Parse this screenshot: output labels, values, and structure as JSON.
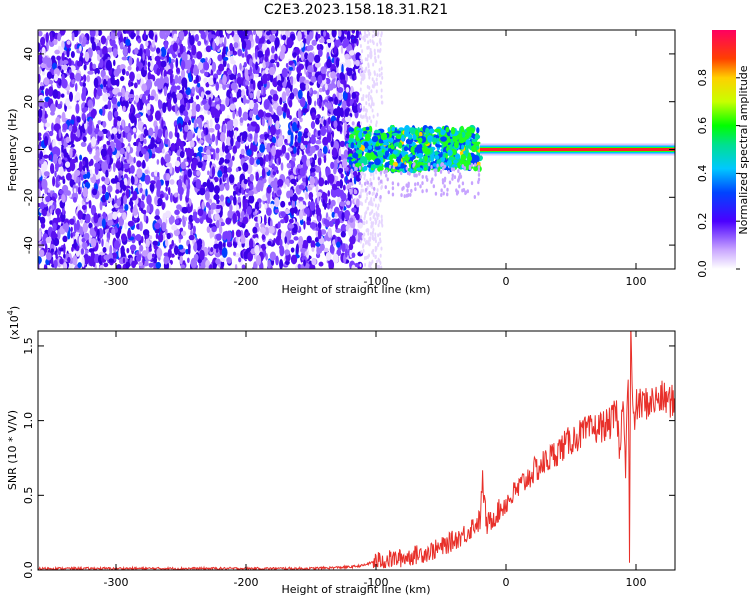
{
  "title": "C2E3.2023.158.18.31.R21",
  "colors": {
    "snr_line": "#e8302a",
    "axis": "#000000"
  },
  "chart_data": [
    {
      "type": "heatmap",
      "title": "C2E3.2023.158.18.31.R21",
      "xlabel": "Height of straight line (km)",
      "ylabel": "Frequency (Hz)",
      "xlim": [
        -360,
        130
      ],
      "ylim": [
        -50,
        50
      ],
      "x_ticks": [
        -300,
        -200,
        -100,
        0,
        100
      ],
      "x_tick_labels": [
        "-300",
        "-200",
        "-100",
        "0",
        "100"
      ],
      "y_ticks": [
        -40,
        -20,
        0,
        20,
        40
      ],
      "y_tick_labels": [
        "-40",
        "-20",
        "0",
        "20",
        "40"
      ],
      "colorbar": {
        "label": "Normalized spectral amplitude",
        "range": [
          0,
          1
        ],
        "ticks": [
          0.0,
          0.2,
          0.4,
          0.6,
          0.8
        ],
        "tick_labels": [
          "0.0",
          "0.2",
          "0.4",
          "0.6",
          "0.8"
        ]
      },
      "regions": [
        {
          "x": [
            -360,
            -112
          ],
          "freq": [
            -50,
            50
          ],
          "amplitude": 0.15,
          "description_type": "broadband noise"
        },
        {
          "x": [
            -120,
            -20
          ],
          "freq": [
            -8,
            8
          ],
          "amplitude": 0.55,
          "description_type": "mixed signal"
        },
        {
          "x": [
            -20,
            130
          ],
          "freq": [
            -1,
            1
          ],
          "amplitude": 0.95,
          "description_type": "tone"
        }
      ]
    },
    {
      "type": "line",
      "xlabel": "Height of straight line (km)",
      "ylabel": "SNR (10 * V/V)",
      "y_multiplier_label": "(x10",
      "y_multiplier_exp": "4",
      "xlim": [
        -360,
        130
      ],
      "ylim": [
        0,
        1.6
      ],
      "x_ticks": [
        -300,
        -200,
        -100,
        0,
        100
      ],
      "x_tick_labels": [
        "-300",
        "-200",
        "-100",
        "0",
        "100"
      ],
      "y_ticks": [
        0.0,
        0.5,
        1.0,
        1.5
      ],
      "y_tick_labels": [
        "0.0",
        "0.5",
        "1.0",
        "1.5"
      ],
      "series": [
        {
          "x": [
            -360,
            -300,
            -200,
            -150,
            -120,
            -110,
            -100,
            -80,
            -60,
            -50,
            -40,
            -30,
            -25,
            -20,
            -18,
            -15,
            -10,
            -5,
            0,
            5,
            10,
            20,
            30,
            40,
            50,
            60,
            70,
            80,
            85,
            88,
            90,
            92,
            94,
            95,
            96,
            97,
            98,
            100,
            110,
            120,
            130
          ],
          "values": [
            0.01,
            0.01,
            0.01,
            0.01,
            0.02,
            0.03,
            0.06,
            0.08,
            0.12,
            0.15,
            0.2,
            0.25,
            0.3,
            0.33,
            0.6,
            0.3,
            0.35,
            0.4,
            0.45,
            0.5,
            0.55,
            0.65,
            0.72,
            0.8,
            0.87,
            0.92,
            0.95,
            0.98,
            1.05,
            0.75,
            1.25,
            0.7,
            1.35,
            0.05,
            1.55,
            1.3,
            0.95,
            1.1,
            1.12,
            1.15,
            1.12
          ]
        }
      ]
    }
  ]
}
